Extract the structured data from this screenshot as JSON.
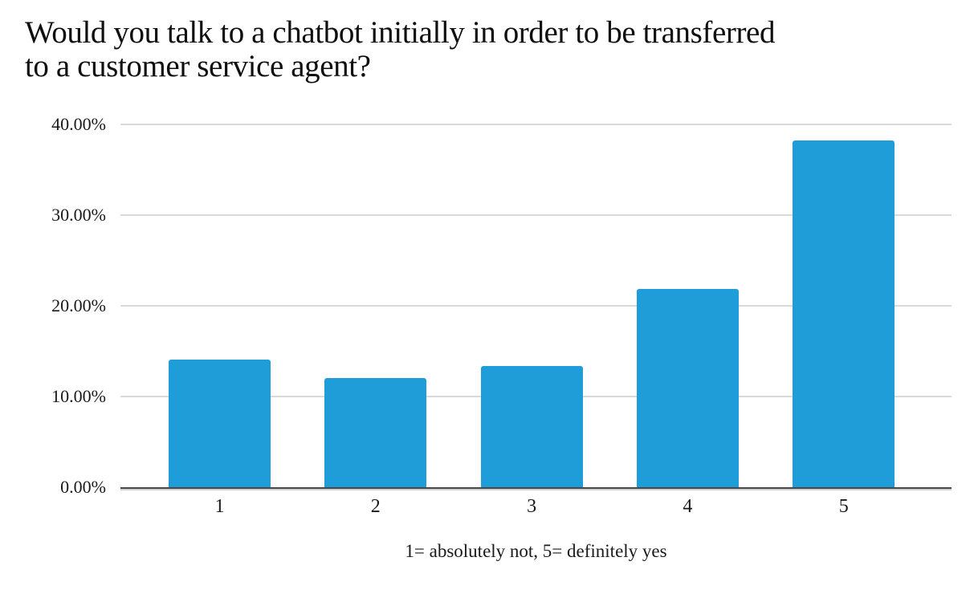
{
  "chart_data": {
    "type": "bar",
    "title": "Would you talk to a chatbot initially in order to be transferred to a customer service agent?",
    "title_lines": [
      "Would you talk to a chatbot initially in order to be transferred",
      "to a customer service agent?"
    ],
    "categories": [
      "1",
      "2",
      "3",
      "4",
      "5"
    ],
    "values": [
      14.1,
      12.0,
      13.4,
      21.9,
      38.2
    ],
    "unit": "%",
    "caption": "1= absolutely not, 5= definitely yes",
    "ylim": [
      0,
      40
    ],
    "yticks": [
      {
        "value": 40,
        "label": "40.00%"
      },
      {
        "value": 30,
        "label": "30.00%"
      },
      {
        "value": 20,
        "label": "20.00%"
      },
      {
        "value": 10,
        "label": "10.00%"
      },
      {
        "value": 0,
        "label": "0.00%"
      }
    ],
    "grid": true,
    "legend": "none",
    "xlabel": "",
    "ylabel": "",
    "colors": {
      "bar": "#1E9DD9",
      "gridline": "#DADADA",
      "axis_line": "#484848",
      "text": "#1A1A1A"
    }
  }
}
